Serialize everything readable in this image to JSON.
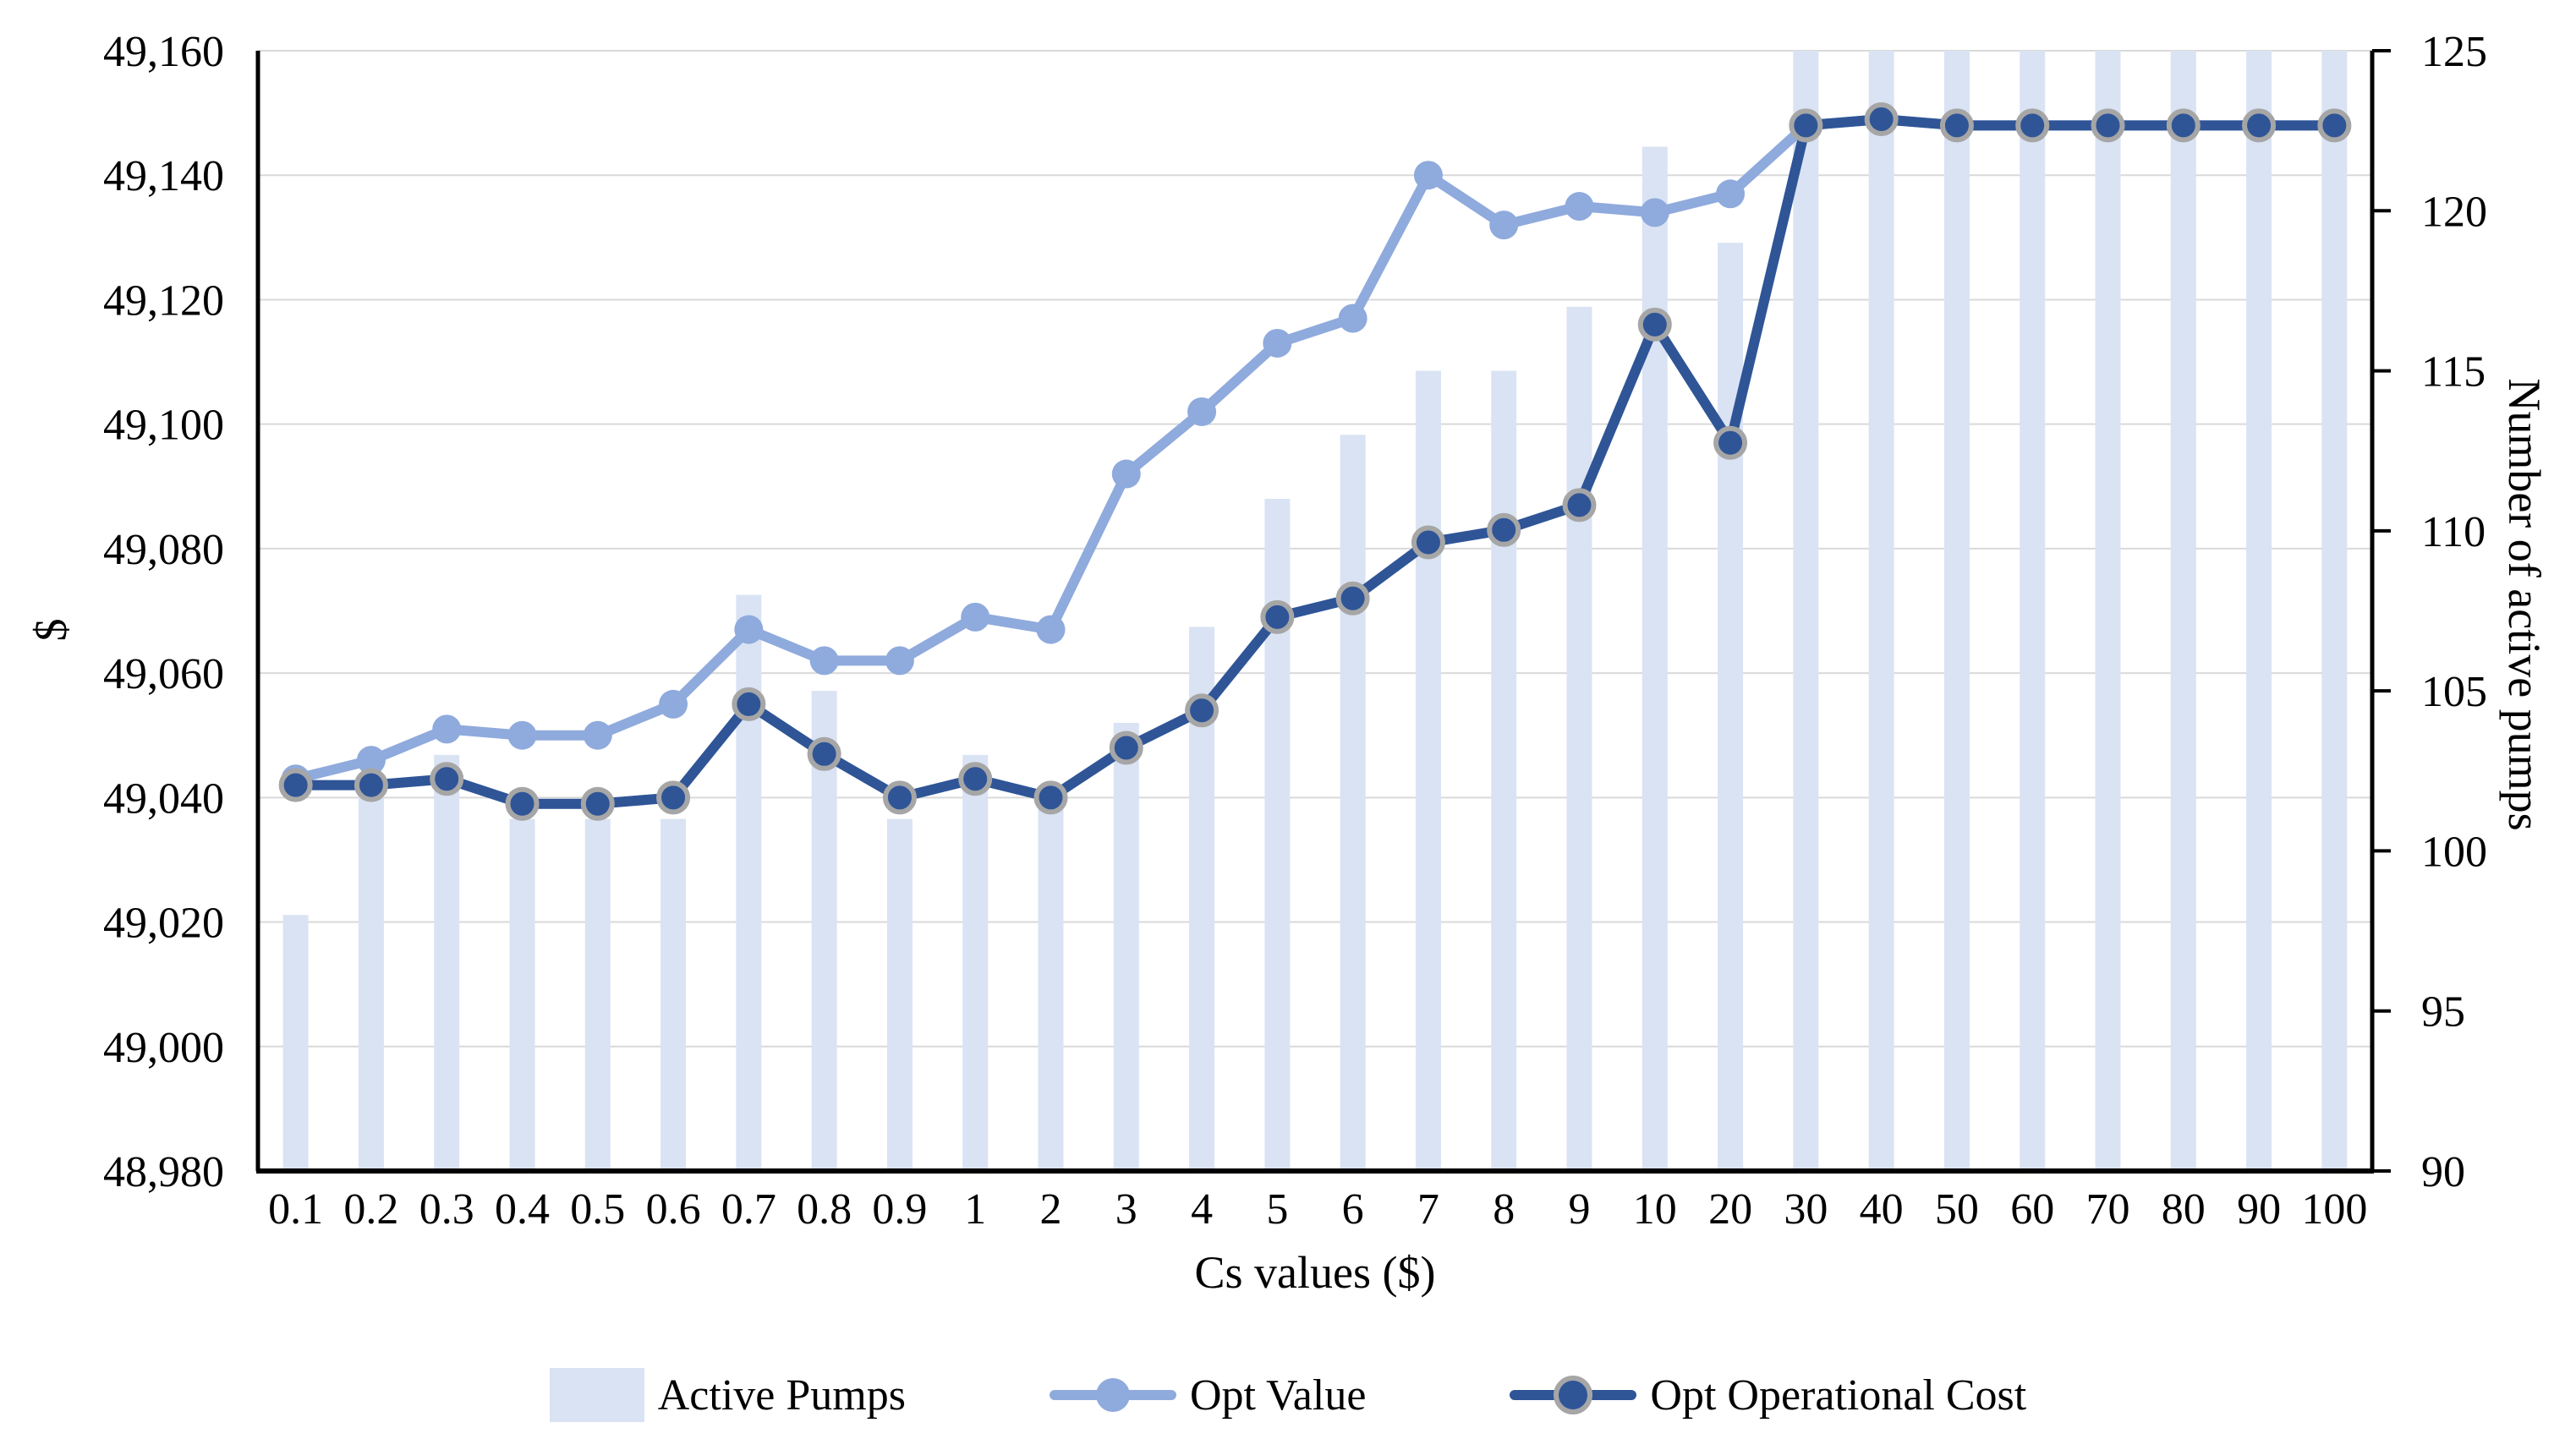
{
  "chart_data": {
    "type": "bar-line-combo",
    "title": "",
    "categories": [
      "0.1",
      "0.2",
      "0.3",
      "0.4",
      "0.5",
      "0.6",
      "0.7",
      "0.8",
      "0.9",
      "1",
      "2",
      "3",
      "4",
      "5",
      "6",
      "7",
      "8",
      "9",
      "10",
      "20",
      "30",
      "40",
      "50",
      "60",
      "70",
      "80",
      "90",
      "100"
    ],
    "series": [
      {
        "name": "Active Pumps",
        "type": "bar",
        "axis": "right",
        "color": "#DAE3F3",
        "values": [
          98,
          102,
          103,
          101,
          101,
          101,
          108,
          105,
          101,
          103,
          102,
          104,
          107,
          111,
          113,
          115,
          115,
          117,
          122,
          119,
          125,
          125,
          125,
          125,
          125,
          125,
          125,
          125
        ]
      },
      {
        "name": "Opt Value",
        "type": "line",
        "axis": "left",
        "color": "#8FAADC",
        "marker": "circle",
        "values": [
          49043,
          49046,
          49051,
          49050,
          49050,
          49055,
          49067,
          49062,
          49062,
          49069,
          49067,
          49092,
          49102,
          49113,
          49117,
          49140,
          49132,
          49135,
          49134,
          49137,
          49148,
          49149,
          49148,
          49148,
          49148,
          49148,
          49148,
          49148
        ]
      },
      {
        "name": "Opt Operational Cost",
        "type": "line",
        "axis": "left",
        "color": "#2F5597",
        "marker": "circle-ringed",
        "marker_ring_color": "#A6A6A6",
        "values": [
          49042,
          49042,
          49043,
          49039,
          49039,
          49040,
          49055,
          49047,
          49040,
          49043,
          49040,
          49048,
          49054,
          49069,
          49072,
          49081,
          49083,
          49087,
          49116,
          49097,
          49148,
          49149,
          49148,
          49148,
          49148,
          49148,
          49148,
          49148
        ]
      }
    ],
    "left_axis": {
      "title": "$",
      "min": 48980,
      "max": 49160,
      "step": 20,
      "tick_labels": [
        "48,980",
        "49,000",
        "49,020",
        "49,040",
        "49,060",
        "49,080",
        "49,100",
        "49,120",
        "49,140",
        "49,160"
      ]
    },
    "right_axis": {
      "title": "Number of active pumps",
      "min": 90,
      "max": 125,
      "step": 5,
      "tick_labels": [
        "90",
        "95",
        "100",
        "105",
        "110",
        "115",
        "120",
        "125"
      ]
    },
    "x_axis": {
      "title": "Cs values ($)"
    },
    "grid": "horizontal-only",
    "gridline_color": "#D9D9D9",
    "axis_color": "#000000",
    "legend_position": "bottom"
  }
}
